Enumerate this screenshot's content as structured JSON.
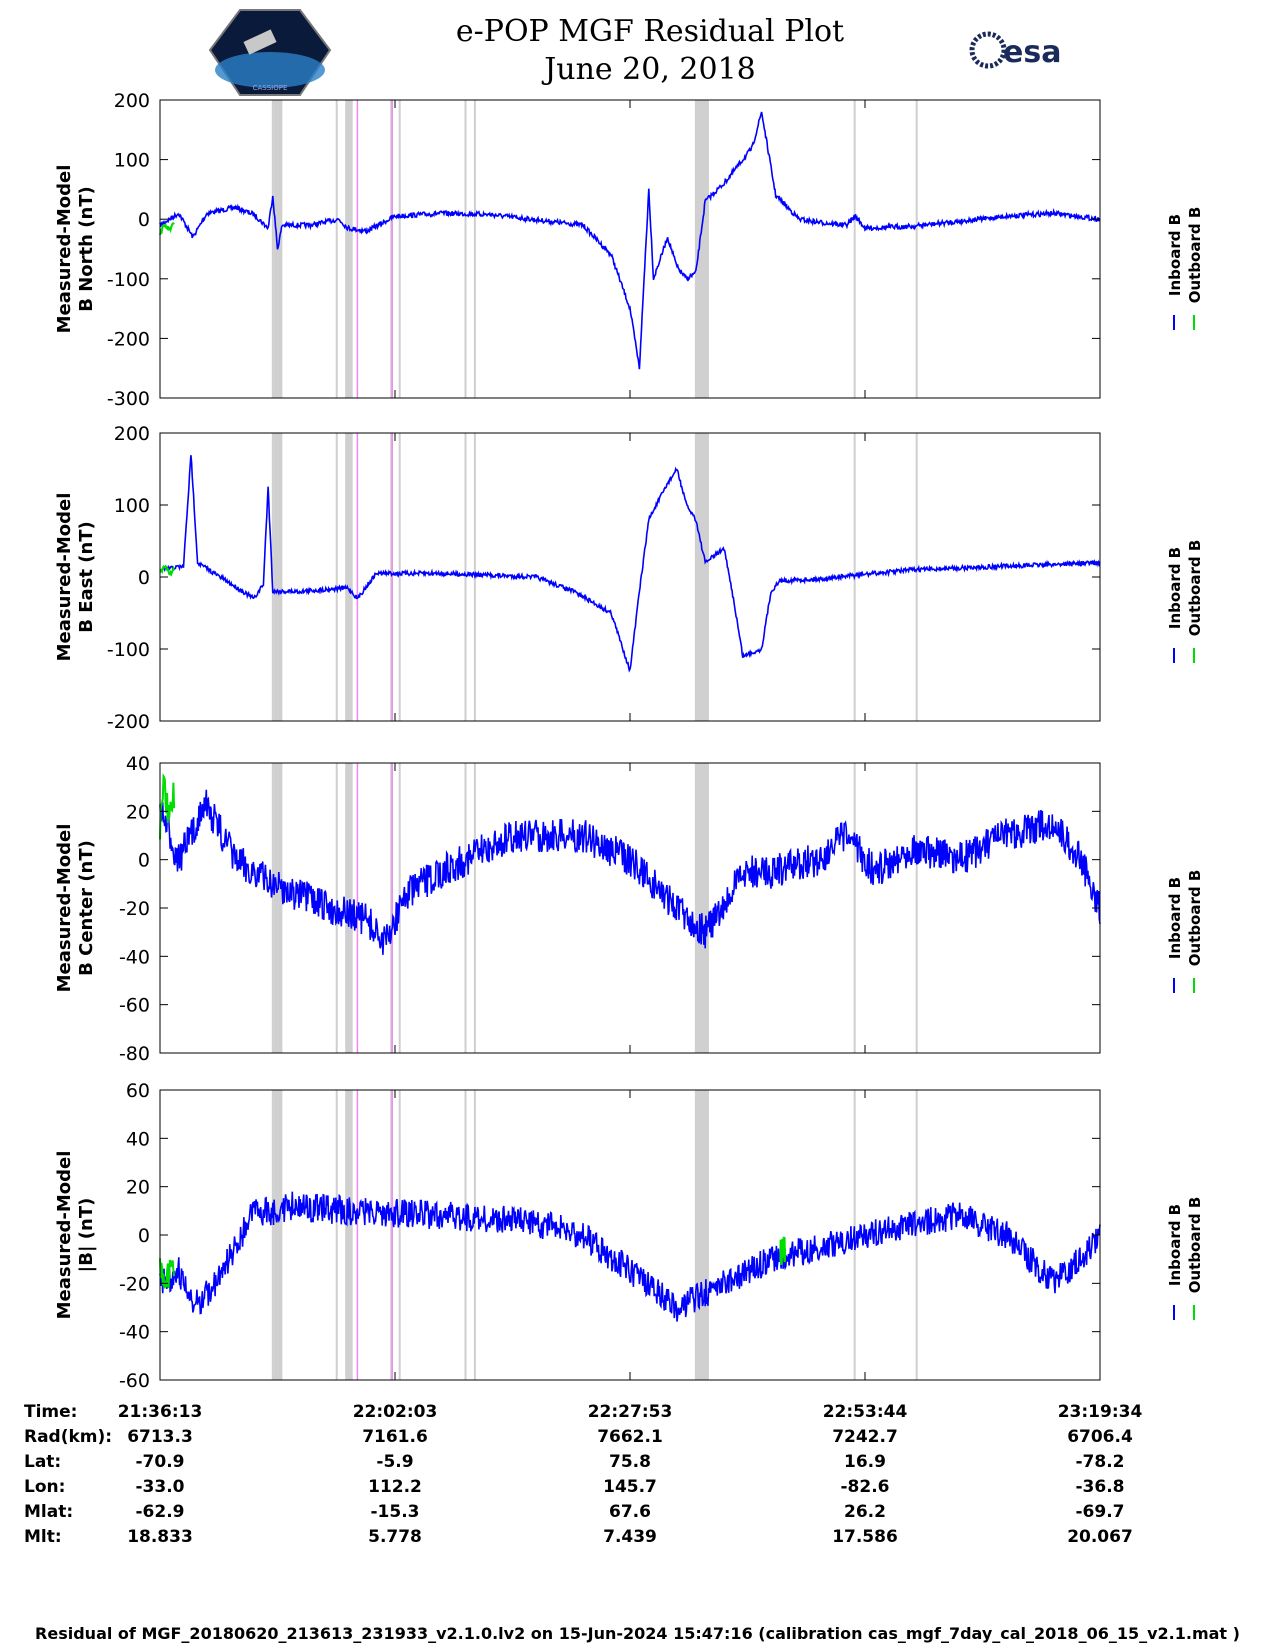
{
  "header": {
    "title_line1": "e-POP MGF Residual Plot",
    "title_line2": "June 20, 2018",
    "logo_left_text": "CASSIOPE",
    "logo_right_text": "esa"
  },
  "legend": {
    "inboard": "Inboard B",
    "outboard": "Outboard B"
  },
  "colors": {
    "inboard": "#0000ff",
    "outboard": "#00dd00",
    "shade": "#d0d0d0",
    "marker": "#ee88ee"
  },
  "chart_data": [
    {
      "type": "line",
      "ylabel_line1": "Measured-Model",
      "ylabel_line2": "B North (nT)",
      "ylim": [
        -300,
        200
      ],
      "yticks": [
        200,
        100,
        0,
        -100,
        -200,
        -300
      ],
      "noise": 4,
      "inboard": [
        [
          0,
          -10
        ],
        [
          0.02,
          10
        ],
        [
          0.035,
          -30
        ],
        [
          0.05,
          10
        ],
        [
          0.08,
          20
        ],
        [
          0.1,
          8
        ],
        [
          0.115,
          -15
        ],
        [
          0.12,
          40
        ],
        [
          0.125,
          -50
        ],
        [
          0.13,
          -10
        ],
        [
          0.16,
          -10
        ],
        [
          0.19,
          0
        ],
        [
          0.2,
          -15
        ],
        [
          0.22,
          -20
        ],
        [
          0.25,
          5
        ],
        [
          0.3,
          10
        ],
        [
          0.35,
          8
        ],
        [
          0.45,
          -10
        ],
        [
          0.48,
          -60
        ],
        [
          0.5,
          -150
        ],
        [
          0.51,
          -250
        ],
        [
          0.52,
          50
        ],
        [
          0.525,
          -100
        ],
        [
          0.54,
          -30
        ],
        [
          0.55,
          -80
        ],
        [
          0.56,
          -100
        ],
        [
          0.57,
          -90
        ],
        [
          0.58,
          30
        ],
        [
          0.6,
          60
        ],
        [
          0.61,
          80
        ],
        [
          0.63,
          120
        ],
        [
          0.64,
          180
        ],
        [
          0.655,
          40
        ],
        [
          0.68,
          0
        ],
        [
          0.7,
          -5
        ],
        [
          0.73,
          -10
        ],
        [
          0.74,
          5
        ],
        [
          0.75,
          -15
        ],
        [
          0.8,
          -12
        ],
        [
          0.9,
          5
        ],
        [
          0.95,
          10
        ],
        [
          1,
          0
        ]
      ],
      "outboard": [
        [
          0,
          -25
        ],
        [
          0.005,
          -10
        ],
        [
          0.01,
          -18
        ],
        [
          0.015,
          -8
        ]
      ]
    },
    {
      "type": "line",
      "ylabel_line1": "Measured-Model",
      "ylabel_line2": "B East (nT)",
      "ylim": [
        -200,
        200
      ],
      "yticks": [
        200,
        100,
        0,
        -100,
        -200
      ],
      "noise": 3,
      "inboard": [
        [
          0,
          10
        ],
        [
          0.025,
          15
        ],
        [
          0.033,
          170
        ],
        [
          0.04,
          20
        ],
        [
          0.07,
          -5
        ],
        [
          0.1,
          -30
        ],
        [
          0.11,
          -10
        ],
        [
          0.115,
          125
        ],
        [
          0.12,
          -20
        ],
        [
          0.15,
          -20
        ],
        [
          0.2,
          -15
        ],
        [
          0.21,
          -30
        ],
        [
          0.23,
          5
        ],
        [
          0.3,
          5
        ],
        [
          0.4,
          0
        ],
        [
          0.44,
          -20
        ],
        [
          0.48,
          -50
        ],
        [
          0.5,
          -130
        ],
        [
          0.51,
          -20
        ],
        [
          0.52,
          80
        ],
        [
          0.54,
          130
        ],
        [
          0.55,
          150
        ],
        [
          0.56,
          100
        ],
        [
          0.57,
          80
        ],
        [
          0.58,
          20
        ],
        [
          0.6,
          40
        ],
        [
          0.61,
          -30
        ],
        [
          0.62,
          -110
        ],
        [
          0.64,
          -100
        ],
        [
          0.65,
          -20
        ],
        [
          0.66,
          -5
        ],
        [
          0.7,
          -3
        ],
        [
          0.76,
          5
        ],
        [
          0.8,
          10
        ],
        [
          0.9,
          15
        ],
        [
          1,
          20
        ]
      ],
      "outboard": [
        [
          0,
          5
        ],
        [
          0.005,
          15
        ],
        [
          0.01,
          5
        ],
        [
          0.015,
          10
        ]
      ]
    },
    {
      "type": "line",
      "ylabel_line1": "Measured-Model",
      "ylabel_line2": "B Center (nT)",
      "ylim": [
        -80,
        40
      ],
      "yticks": [
        40,
        20,
        0,
        -20,
        -40,
        -60,
        -80
      ],
      "noise": 7,
      "inboard": [
        [
          0,
          20
        ],
        [
          0.02,
          0
        ],
        [
          0.04,
          15
        ],
        [
          0.045,
          25
        ],
        [
          0.06,
          15
        ],
        [
          0.08,
          0
        ],
        [
          0.12,
          -10
        ],
        [
          0.15,
          -15
        ],
        [
          0.18,
          -20
        ],
        [
          0.22,
          -25
        ],
        [
          0.24,
          -35
        ],
        [
          0.26,
          -15
        ],
        [
          0.3,
          -5
        ],
        [
          0.35,
          5
        ],
        [
          0.38,
          10
        ],
        [
          0.45,
          10
        ],
        [
          0.5,
          0
        ],
        [
          0.55,
          -20
        ],
        [
          0.58,
          -30
        ],
        [
          0.6,
          -20
        ],
        [
          0.62,
          -5
        ],
        [
          0.65,
          -5
        ],
        [
          0.7,
          0
        ],
        [
          0.73,
          10
        ],
        [
          0.76,
          -5
        ],
        [
          0.8,
          5
        ],
        [
          0.85,
          0
        ],
        [
          0.9,
          10
        ],
        [
          0.95,
          15
        ],
        [
          0.98,
          0
        ],
        [
          1,
          -20
        ]
      ],
      "outboard": [
        [
          0,
          15
        ],
        [
          0.004,
          30
        ],
        [
          0.008,
          20
        ],
        [
          0.012,
          25
        ]
      ]
    },
    {
      "type": "line",
      "ylabel_line1": "Measured-Model",
      "ylabel_line2": "|B| (nT)",
      "ylim": [
        -60,
        60
      ],
      "yticks": [
        60,
        40,
        20,
        0,
        -20,
        -40,
        -60
      ],
      "noise": 6,
      "inboard": [
        [
          0,
          -20
        ],
        [
          0.02,
          -15
        ],
        [
          0.035,
          -30
        ],
        [
          0.06,
          -20
        ],
        [
          0.1,
          10
        ],
        [
          0.12,
          10
        ],
        [
          0.14,
          12
        ],
        [
          0.2,
          10
        ],
        [
          0.3,
          8
        ],
        [
          0.4,
          5
        ],
        [
          0.45,
          0
        ],
        [
          0.5,
          -15
        ],
        [
          0.55,
          -30
        ],
        [
          0.6,
          -20
        ],
        [
          0.65,
          -10
        ],
        [
          0.7,
          -5
        ],
        [
          0.8,
          5
        ],
        [
          0.85,
          8
        ],
        [
          0.9,
          0
        ],
        [
          0.95,
          -20
        ],
        [
          0.98,
          -10
        ],
        [
          1,
          0
        ]
      ],
      "outboard": [
        [
          0,
          -15
        ],
        [
          0.005,
          -20
        ],
        [
          0.01,
          -15
        ],
        [
          0.66,
          -8
        ],
        [
          0.665,
          -5
        ]
      ]
    }
  ],
  "x_axis": {
    "shaded_bands": [
      [
        0.121,
        0.13
      ],
      [
        0.197,
        0.205
      ],
      [
        0.569,
        0.584
      ]
    ],
    "thin_lines": [
      0.12,
      0.129,
      0.188,
      0.2,
      0.246,
      0.255,
      0.325,
      0.335,
      0.739,
      0.805
    ],
    "marker_lines": [
      0.21,
      0.247
    ]
  },
  "ephemeris": {
    "labels": [
      "Time:",
      "Rad(km):",
      "Lat:",
      "Lon:",
      "Mlat:",
      "Mlt:"
    ],
    "columns": [
      [
        "21:36:13",
        "6713.3",
        "-70.9",
        "-33.0",
        "-62.9",
        "18.833"
      ],
      [
        "22:02:03",
        "7161.6",
        "-5.9",
        "112.2",
        "-15.3",
        "5.778"
      ],
      [
        "22:27:53",
        "7662.1",
        "75.8",
        "145.7",
        "67.6",
        "7.439"
      ],
      [
        "22:53:44",
        "7242.7",
        "16.9",
        "-82.6",
        "26.2",
        "17.586"
      ],
      [
        "23:19:34",
        "6706.4",
        "-78.2",
        "-36.8",
        "-69.7",
        "20.067"
      ]
    ]
  },
  "footer": "Residual of MGF_20180620_213613_231933_v2.1.0.lv2 on 15-Jun-2024 15:47:16 (calibration cas_mgf_7day_cal_2018_06_15_v2.1.mat )"
}
